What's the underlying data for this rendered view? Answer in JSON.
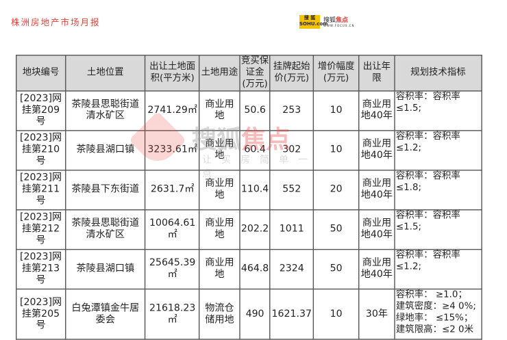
{
  "header": {
    "title": "株洲房地产市场月报",
    "logo_sohu": "搜狐 SOHU.com",
    "logo_focus": "搜狐焦点",
    "logo_focus_url": "WWW.FOCUS.CN"
  },
  "watermark": {
    "brand": "搜狐",
    "brand_accent": "焦点",
    "slogan": "让买房简单一点"
  },
  "table": {
    "headers": [
      "地块编号",
      "土地位置",
      "出让土地面积(平方米)",
      "土地用途",
      "竞买保证金(万元)",
      "挂牌起始价(万元)",
      "增价幅度(万元)",
      "出让年限",
      "规划技术指标"
    ],
    "rows": [
      [
        "[2023]网挂第209号",
        "茶陵县思聪街道清水矿区",
        "2741.29㎡",
        "商业用地",
        "50.6",
        "253",
        "10",
        "商业用地40年",
        "容积率：容积率≤1.5;"
      ],
      [
        "[2023]网挂第210号",
        "茶陵县湖口镇",
        "3233.61㎡",
        "商业用地",
        "60.4",
        "302",
        "10",
        "商业用地40年",
        "容积率：容积率≤1.2;"
      ],
      [
        "[2023]网挂第211号",
        "茶陵县下东街道",
        "2631.7㎡",
        "商业用地",
        "110.4",
        "552",
        "20",
        "商业用地40年",
        "容积率：容积率≤1.8;"
      ],
      [
        "[2023]网挂第212号",
        "茶陵县思聪街道清水矿区",
        "10064.61㎡",
        "商业用地",
        "202.2",
        "1011",
        "50",
        "商业用地40年",
        "容积率：容积率≤1.5;"
      ],
      [
        "[2023]网挂第213号",
        "茶陵县湖口镇",
        "25645.39㎡",
        "商业用地",
        "464.8",
        "2324",
        "50",
        "商业用地40年",
        "容积率：容积率≤1.2;"
      ],
      [
        "[2023]网挂第205号",
        "白兔潭镇金牛居委会",
        "21618.23㎡",
        "物流仓储用地",
        "490",
        "1621.37",
        "10",
        "30年",
        "容积率： ≥1.0；\n建筑密度：≥4 0%;\n绿地率： ≤15%；\n建筑限高：≤2 0米"
      ]
    ]
  }
}
